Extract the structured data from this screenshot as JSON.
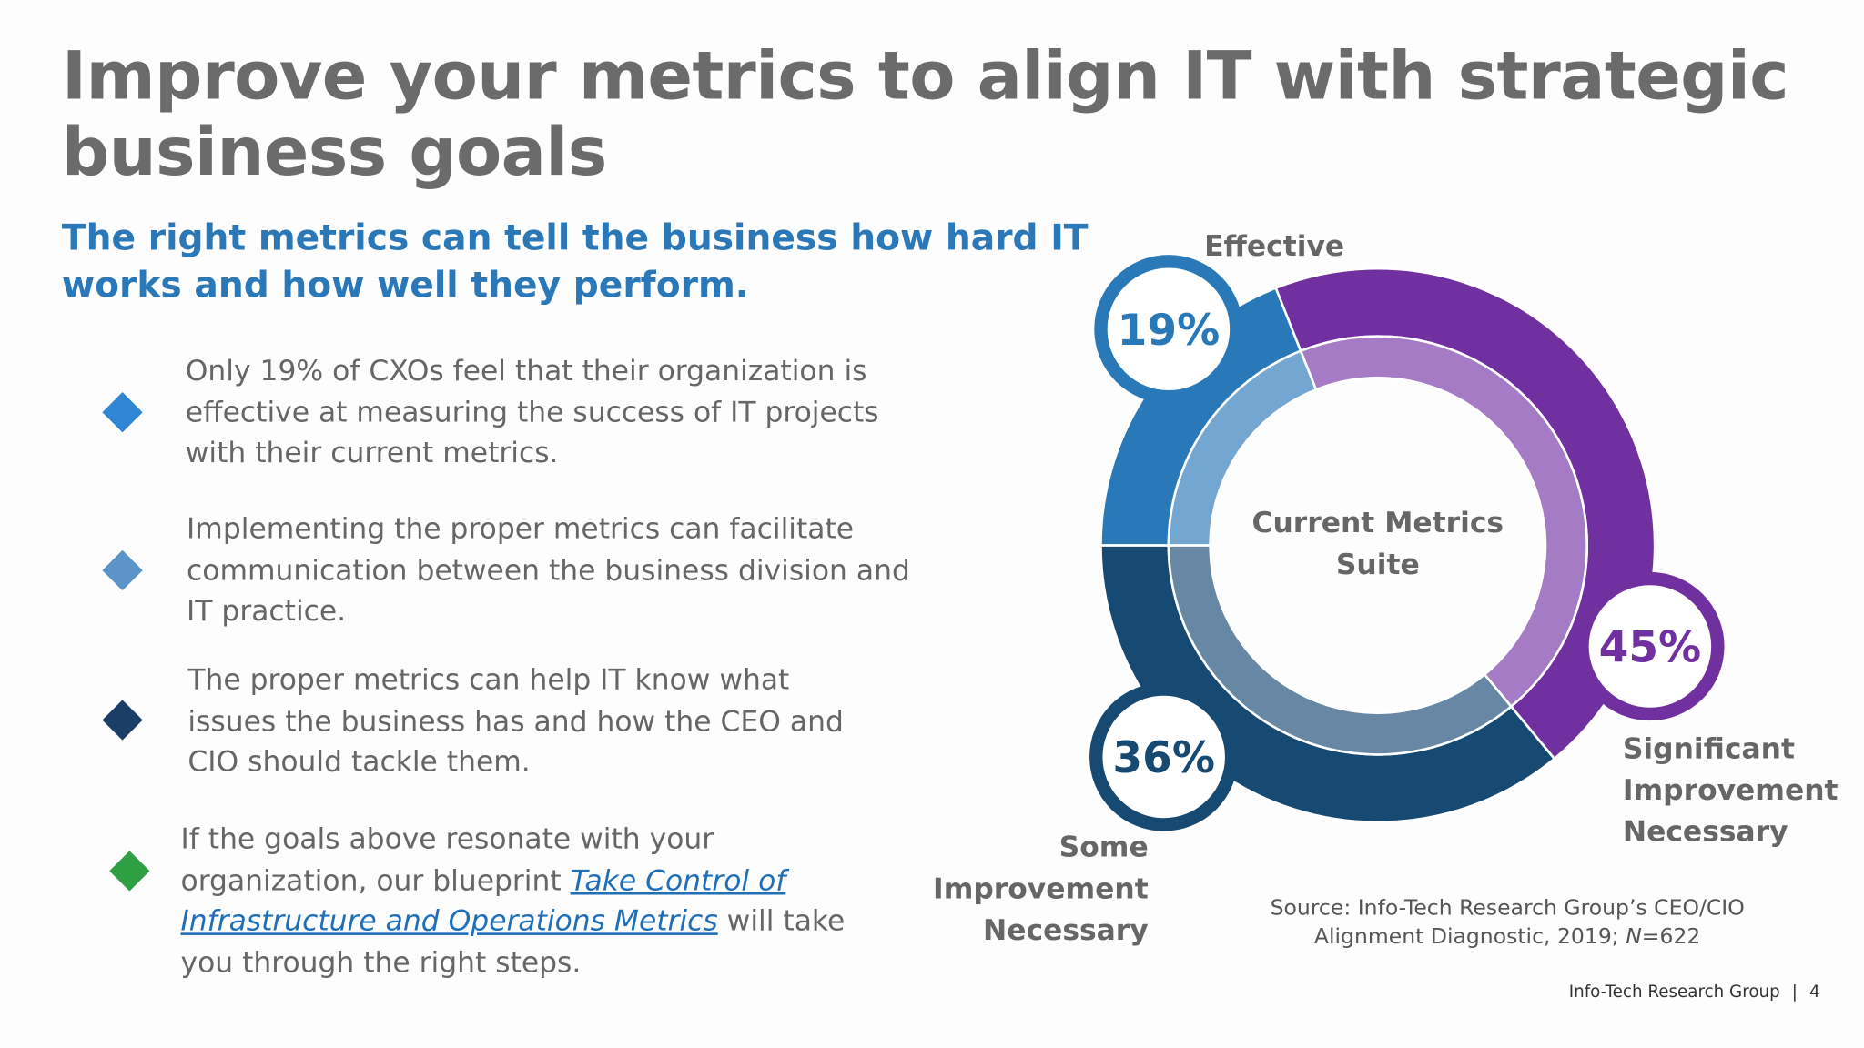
{
  "header": {
    "title": "Improve your metrics to align IT with strategic business goals",
    "subtitle": "The right metrics can tell the business how hard IT works and how well they perform."
  },
  "bullets": [
    {
      "text": "Only 19% of CXOs feel that their organization is effective at measuring the success of IT projects with their current metrics.",
      "color": "#2e86d4"
    },
    {
      "text": "Implementing the proper metrics can facilitate communication between the business division and IT practice.",
      "color": "#5b94c8"
    },
    {
      "text": "The proper metrics can help IT know what issues the business has and how the CEO and CIO should tackle them.",
      "color": "#1b3e66"
    },
    {
      "text_before": "If the goals above resonate with your organization, our blueprint ",
      "link": "Take Control of Infrastructure and Operations Metrics",
      "text_after": " will take you through the right steps.",
      "color": "#2ea043"
    }
  ],
  "chart_data": {
    "type": "donut",
    "center_label": "Current Metrics Suite",
    "categories": [
      "Effective",
      "Significant Improvement Necessary",
      "Some Improvement Necessary"
    ],
    "values": [
      19,
      45,
      36
    ],
    "value_labels": [
      "19%",
      "45%",
      "36%"
    ],
    "colors": [
      "#2979b9",
      "#7030a0",
      "#174a72"
    ],
    "inner_colors": [
      "#74a6d2",
      "#a47bc4",
      "#6787a4"
    ]
  },
  "source": {
    "before": "Source: Info-Tech Research Group’s CEO/CIO Alignment Diagnostic, 2019; ",
    "italic": "N",
    "after": "=622"
  },
  "footer": {
    "brand": "Info-Tech Research Group",
    "page": "4"
  }
}
